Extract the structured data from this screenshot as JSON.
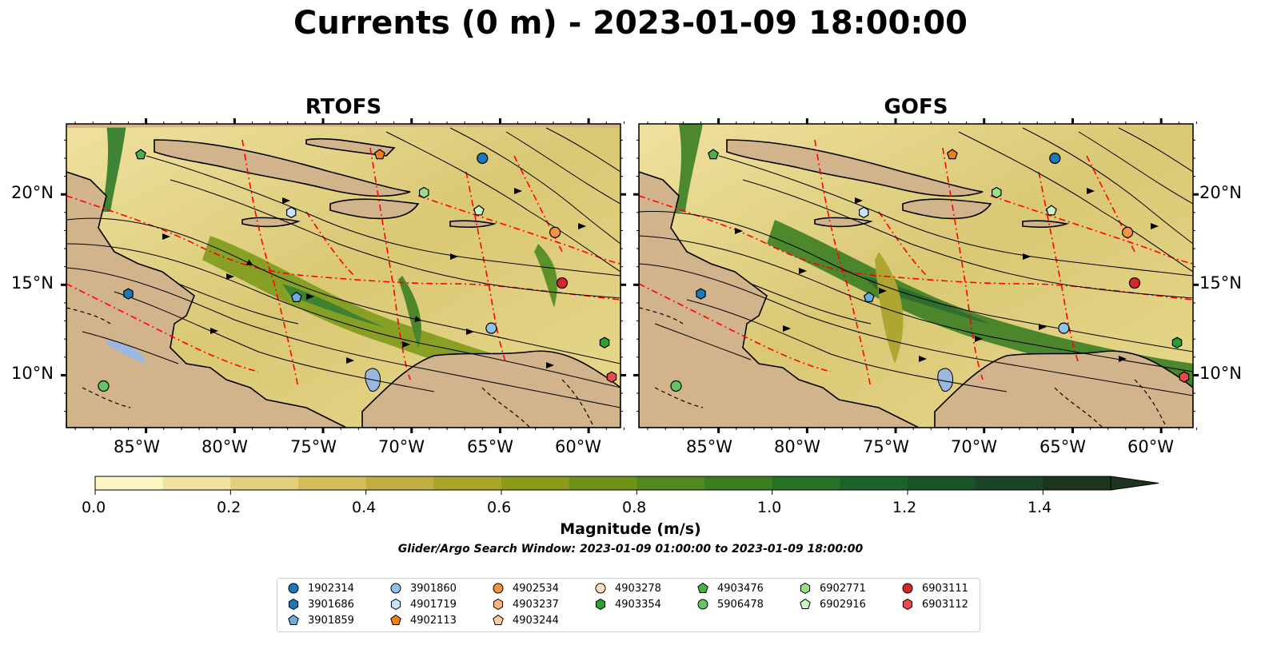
{
  "title": "Currents (0 m) - 2023-01-09 18:00:00",
  "panels": [
    {
      "title": "RTOFS"
    },
    {
      "title": "GOFS"
    }
  ],
  "axes": {
    "x_ticks": [
      "85°W",
      "80°W",
      "75°W",
      "70°W",
      "65°W",
      "60°W"
    ],
    "y_ticks": [
      "20°N",
      "15°N",
      "10°N"
    ]
  },
  "colorbar": {
    "label": "Magnitude (m/s)",
    "ticks": [
      "0.0",
      "0.2",
      "0.4",
      "0.6",
      "0.8",
      "1.0",
      "1.2",
      "1.4"
    ],
    "range": [
      0.0,
      1.5
    ],
    "colors": [
      "#fdf6c4",
      "#f0e2a0",
      "#e3d07d",
      "#d4bf5c",
      "#c1b03f",
      "#a9a42b",
      "#8c9c1a",
      "#6f9317",
      "#52891d",
      "#3b7e22",
      "#277226",
      "#1c6329",
      "#1a5229",
      "#1b4326",
      "#1c3420"
    ]
  },
  "search_window": "Glider/Argo Search Window: 2023-01-09 01:00:00 to 2023-01-09 18:00:00",
  "legend": [
    {
      "label": "1902314",
      "marker": "circle",
      "color": "#1f77b4"
    },
    {
      "label": "3901686",
      "marker": "hexagon",
      "color": "#1f77b4"
    },
    {
      "label": "3901859",
      "marker": "pentagon",
      "color": "#6aaee0"
    },
    {
      "label": "3901860",
      "marker": "circle",
      "color": "#8ec2ec"
    },
    {
      "label": "4901719",
      "marker": "hexagon",
      "color": "#c8e3f8"
    },
    {
      "label": "4902113",
      "marker": "pentagon",
      "color": "#f07f16"
    },
    {
      "label": "4902534",
      "marker": "circle",
      "color": "#f5923c"
    },
    {
      "label": "4903237",
      "marker": "hexagon",
      "color": "#fbb47a"
    },
    {
      "label": "4903244",
      "marker": "pentagon",
      "color": "#fdcba0"
    },
    {
      "label": "4903278",
      "marker": "circle",
      "color": "#fde2c8"
    },
    {
      "label": "4903354",
      "marker": "hexagon",
      "color": "#2ca02c"
    },
    {
      "label": "4903476",
      "marker": "pentagon",
      "color": "#4daf4a"
    },
    {
      "label": "5906478",
      "marker": "circle",
      "color": "#66c466"
    },
    {
      "label": "6902771",
      "marker": "hexagon",
      "color": "#98df8a"
    },
    {
      "label": "6902916",
      "marker": "pentagon",
      "color": "#ccf2c4"
    },
    {
      "label": "6903111",
      "marker": "circle",
      "color": "#d62728"
    },
    {
      "label": "6903112",
      "marker": "hexagon",
      "color": "#e8494a"
    }
  ],
  "floats": [
    {
      "id": "1902314",
      "lon": -66.0,
      "lat": 22.0
    },
    {
      "id": "3901686",
      "lon": -86.0,
      "lat": 14.5
    },
    {
      "id": "3901859",
      "lon": -76.5,
      "lat": 14.3
    },
    {
      "id": "3901860",
      "lon": -65.5,
      "lat": 12.6
    },
    {
      "id": "4901719",
      "lon": -76.8,
      "lat": 19.0
    },
    {
      "id": "4902113",
      "lon": -71.8,
      "lat": 22.2
    },
    {
      "id": "4902534",
      "lon": -61.9,
      "lat": 17.9
    },
    {
      "id": "4903354",
      "lon": -59.1,
      "lat": 11.8
    },
    {
      "id": "4903476",
      "lon": -85.3,
      "lat": 22.2
    },
    {
      "id": "5906478",
      "lon": -87.4,
      "lat": 9.4
    },
    {
      "id": "6902771",
      "lon": -69.3,
      "lat": 20.1
    },
    {
      "id": "6902916",
      "lon": -66.2,
      "lat": 19.1
    },
    {
      "id": "6903111",
      "lon": -61.5,
      "lat": 15.1
    },
    {
      "id": "6903112",
      "lon": -58.7,
      "lat": 9.9
    }
  ],
  "map_extent": {
    "lon": [
      -89.5,
      -58.2
    ],
    "lat": [
      7.1,
      23.9
    ]
  },
  "colors": {
    "land": "#d2b48c",
    "lakes": "#9ab8dd",
    "eez": "#ff0000"
  }
}
